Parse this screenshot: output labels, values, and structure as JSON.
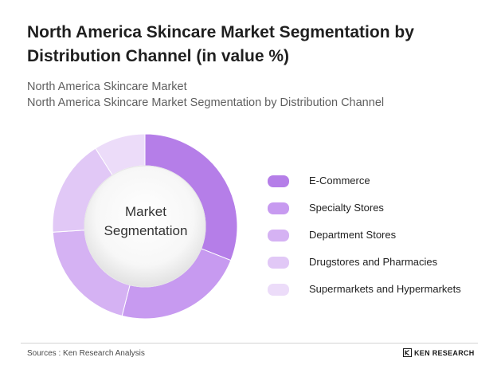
{
  "header": {
    "title": "North America Skincare Market Segmentation by Distribution Channel (in value %)",
    "subtitle_1": "North America Skincare Market",
    "subtitle_2": "North America Skincare Market Segmentation by Distribution Channel"
  },
  "chart_data": {
    "type": "pie",
    "variant": "donut",
    "title": "North America Skincare Market Segmentation by Distribution Channel (in value %)",
    "center_label": "Market\nSegmentation",
    "categories": [
      "E-Commerce",
      "Specialty Stores",
      "Department Stores",
      "Drugstores and Pharmacies",
      "Supermarkets and Hypermarkets"
    ],
    "values": [
      31,
      23,
      20,
      17,
      9
    ],
    "colors": [
      "#b57ee8",
      "#c79af0",
      "#d5b2f3",
      "#e1c8f6",
      "#ecdcf9"
    ],
    "legend_position": "right"
  },
  "footer": {
    "source": "Sources : Ken Research Analysis",
    "brand": "KEN RESEARCH"
  }
}
